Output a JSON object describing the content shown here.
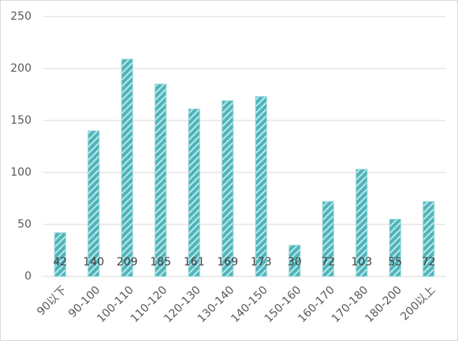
{
  "chart_data": {
    "type": "bar",
    "categories": [
      "90以下",
      "90-100",
      "100-110",
      "110-120",
      "120-130",
      "130-140",
      "140-150",
      "150-160",
      "160-170",
      "170-180",
      "180-200",
      "200以上"
    ],
    "values": [
      42,
      140,
      209,
      185,
      161,
      169,
      173,
      30,
      72,
      103,
      55,
      72
    ],
    "color": "#4bb5bb",
    "ylim": [
      0,
      250
    ],
    "yticks": [
      0,
      50,
      100,
      150,
      200,
      250
    ],
    "grid": true
  }
}
